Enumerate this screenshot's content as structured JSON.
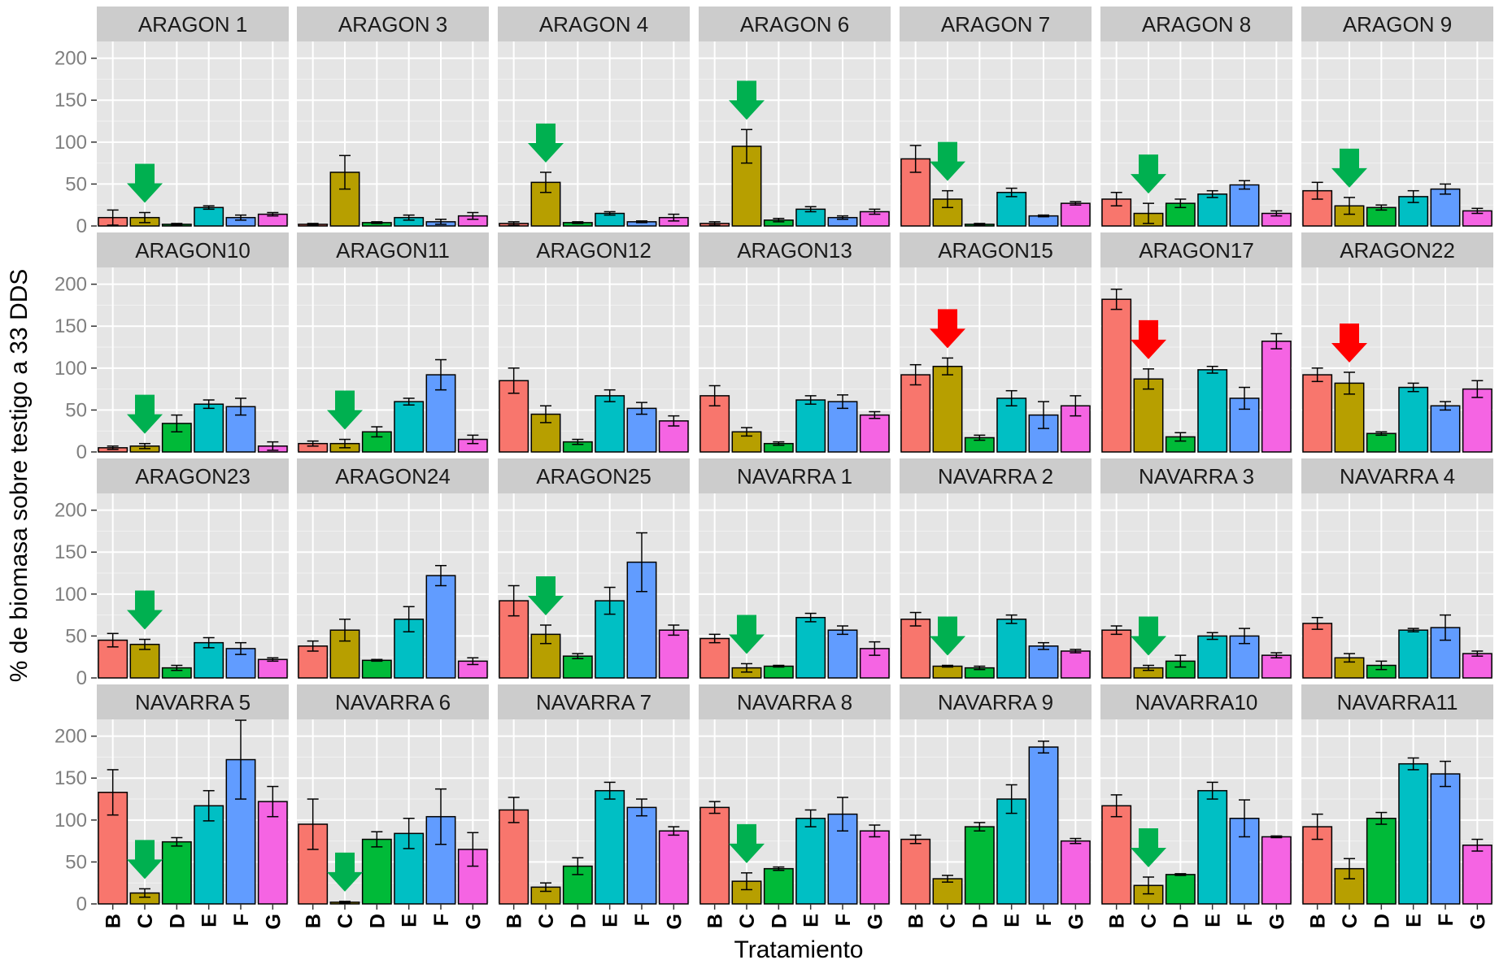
{
  "chart_data": {
    "type": "bar",
    "ylabel": "% de biomasa sobre testigo a 33 DDS",
    "xlabel": "Tratamiento",
    "categories": [
      "B",
      "C",
      "D",
      "E",
      "F",
      "G"
    ],
    "colors": [
      "#F8766D",
      "#B79F00",
      "#00BA38",
      "#00BFC4",
      "#619CFF",
      "#F564E3"
    ],
    "arrow_colors": {
      "green": "#00B050",
      "red": "#FF0000"
    },
    "ylim": [
      0,
      220
    ],
    "yticks": [
      0,
      50,
      100,
      150,
      200
    ],
    "panels": [
      {
        "name": "ARAGON 1",
        "values": [
          10,
          10,
          2,
          22,
          10,
          14
        ],
        "errors": [
          9,
          6,
          1,
          2,
          3,
          2
        ],
        "arrow": "green"
      },
      {
        "name": "ARAGON 3",
        "values": [
          2,
          64,
          4,
          10,
          5,
          12
        ],
        "errors": [
          1,
          20,
          1,
          3,
          3,
          4
        ],
        "arrow": null
      },
      {
        "name": "ARAGON 4",
        "values": [
          3,
          52,
          4,
          15,
          5,
          10
        ],
        "errors": [
          2,
          12,
          1,
          2,
          1,
          4
        ],
        "arrow": "green"
      },
      {
        "name": "ARAGON 6",
        "values": [
          3,
          95,
          7,
          20,
          10,
          17
        ],
        "errors": [
          2,
          20,
          2,
          3,
          2,
          3
        ],
        "arrow": "green"
      },
      {
        "name": "ARAGON 7",
        "values": [
          80,
          32,
          2,
          40,
          12,
          27
        ],
        "errors": [
          16,
          10,
          1,
          5,
          1,
          2
        ],
        "arrow": "green"
      },
      {
        "name": "ARAGON 8",
        "values": [
          32,
          15,
          27,
          38,
          49,
          15
        ],
        "errors": [
          8,
          12,
          5,
          4,
          5,
          3
        ],
        "arrow": "green"
      },
      {
        "name": "ARAGON 9",
        "values": [
          42,
          24,
          22,
          35,
          44,
          18
        ],
        "errors": [
          10,
          10,
          3,
          7,
          6,
          3
        ],
        "arrow": "green"
      },
      {
        "name": "ARAGON10",
        "values": [
          5,
          7,
          34,
          57,
          54,
          7
        ],
        "errors": [
          2,
          3,
          10,
          5,
          10,
          5
        ],
        "arrow": "green"
      },
      {
        "name": "ARAGON11",
        "values": [
          10,
          10,
          24,
          60,
          92,
          15
        ],
        "errors": [
          3,
          5,
          6,
          4,
          18,
          5
        ],
        "arrow": "green"
      },
      {
        "name": "ARAGON12",
        "values": [
          85,
          45,
          12,
          67,
          52,
          37
        ],
        "errors": [
          15,
          10,
          3,
          7,
          7,
          6
        ],
        "arrow": null
      },
      {
        "name": "ARAGON13",
        "values": [
          67,
          24,
          10,
          62,
          60,
          44
        ],
        "errors": [
          12,
          5,
          2,
          5,
          8,
          4
        ],
        "arrow": null
      },
      {
        "name": "ARAGON15",
        "values": [
          92,
          102,
          17,
          64,
          44,
          55
        ],
        "errors": [
          12,
          10,
          3,
          9,
          16,
          12
        ],
        "arrow": "red"
      },
      {
        "name": "ARAGON17",
        "values": [
          182,
          87,
          18,
          98,
          64,
          132
        ],
        "errors": [
          12,
          12,
          5,
          4,
          13,
          9
        ],
        "arrow": "red"
      },
      {
        "name": "ARAGON22",
        "values": [
          92,
          82,
          22,
          77,
          55,
          75
        ],
        "errors": [
          8,
          13,
          2,
          5,
          5,
          10
        ],
        "arrow": "red"
      },
      {
        "name": "ARAGON23",
        "values": [
          45,
          40,
          12,
          42,
          35,
          22
        ],
        "errors": [
          8,
          6,
          3,
          6,
          7,
          2
        ],
        "arrow": "green"
      },
      {
        "name": "ARAGON24",
        "values": [
          38,
          57,
          21,
          70,
          122,
          20
        ],
        "errors": [
          6,
          13,
          1,
          15,
          12,
          4
        ],
        "arrow": null
      },
      {
        "name": "ARAGON25",
        "values": [
          92,
          52,
          26,
          92,
          138,
          57
        ],
        "errors": [
          18,
          11,
          3,
          16,
          35,
          6
        ],
        "arrow": "green"
      },
      {
        "name": "NAVARRA 1",
        "values": [
          47,
          12,
          14,
          72,
          57,
          35
        ],
        "errors": [
          5,
          5,
          1,
          5,
          5,
          8
        ],
        "arrow": "green"
      },
      {
        "name": "NAVARRA 2",
        "values": [
          70,
          14,
          12,
          70,
          38,
          32
        ],
        "errors": [
          8,
          1,
          2,
          5,
          4,
          2
        ],
        "arrow": "green"
      },
      {
        "name": "NAVARRA 3",
        "values": [
          57,
          12,
          20,
          50,
          50,
          27
        ],
        "errors": [
          5,
          3,
          7,
          4,
          9,
          3
        ],
        "arrow": "green"
      },
      {
        "name": "NAVARRA 4",
        "values": [
          65,
          24,
          15,
          57,
          60,
          29
        ],
        "errors": [
          7,
          5,
          5,
          2,
          15,
          3
        ],
        "arrow": null
      },
      {
        "name": "NAVARRA 5",
        "values": [
          133,
          13,
          74,
          117,
          172,
          122
        ],
        "errors": [
          27,
          5,
          5,
          18,
          47,
          18
        ],
        "arrow": "green"
      },
      {
        "name": "NAVARRA 6",
        "values": [
          95,
          2,
          77,
          84,
          104,
          65
        ],
        "errors": [
          30,
          1,
          9,
          18,
          33,
          20
        ],
        "arrow": "green"
      },
      {
        "name": "NAVARRA 7",
        "values": [
          112,
          20,
          45,
          135,
          115,
          87
        ],
        "errors": [
          15,
          5,
          10,
          10,
          10,
          5
        ],
        "arrow": null
      },
      {
        "name": "NAVARRA 8",
        "values": [
          115,
          27,
          42,
          102,
          107,
          87
        ],
        "errors": [
          7,
          10,
          2,
          10,
          20,
          7
        ],
        "arrow": "green"
      },
      {
        "name": "NAVARRA 9",
        "values": [
          77,
          30,
          92,
          125,
          187,
          75
        ],
        "errors": [
          5,
          4,
          5,
          17,
          7,
          3
        ],
        "arrow": null
      },
      {
        "name": "NAVARRA10",
        "values": [
          117,
          22,
          35,
          135,
          102,
          80
        ],
        "errors": [
          13,
          10,
          1,
          10,
          22,
          1
        ],
        "arrow": "green"
      },
      {
        "name": "NAVARRA11",
        "values": [
          92,
          42,
          102,
          167,
          155,
          70
        ],
        "errors": [
          15,
          12,
          7,
          7,
          15,
          7
        ],
        "arrow": null
      }
    ]
  }
}
